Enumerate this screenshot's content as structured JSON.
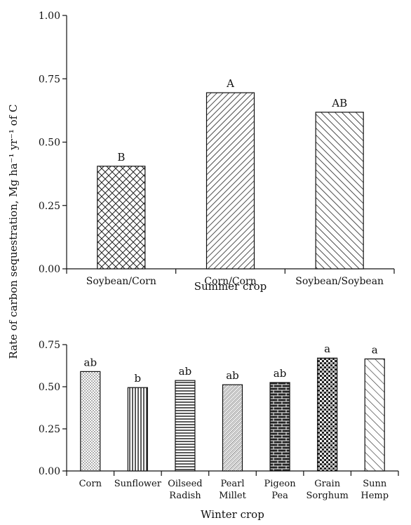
{
  "ylabel": "Rate of carbon sequestration, Mg ha⁻¹ yr⁻¹ of C",
  "chart_data": [
    {
      "type": "bar",
      "panel": "top",
      "xlabel": "Summer crop",
      "categories": [
        "Soybean/Corn",
        "Corn/Corn",
        "Soybean/Soybean"
      ],
      "values": [
        0.405,
        0.695,
        0.618
      ],
      "labels": [
        "B",
        "A",
        "AB"
      ],
      "patterns": [
        "crosshatch",
        "diagonal-dense",
        "diagonal"
      ],
      "ylim": [
        0,
        1.0
      ],
      "yticks": [
        "0.00",
        "0.25",
        "0.50",
        "0.75",
        "1.00"
      ],
      "grid": false
    },
    {
      "type": "bar",
      "panel": "bottom",
      "xlabel": "Winter crop",
      "categories": [
        [
          "Corn"
        ],
        [
          "Sunflower"
        ],
        [
          "Oilseed",
          "Radish"
        ],
        [
          "Pearl",
          "Millet"
        ],
        [
          "Pigeon",
          "Pea"
        ],
        [
          "Grain",
          "Sorghum"
        ],
        [
          "Sunn",
          "Hemp"
        ]
      ],
      "values": [
        0.59,
        0.495,
        0.537,
        0.512,
        0.525,
        0.67,
        0.665
      ],
      "labels": [
        "ab",
        "b",
        "ab",
        "ab",
        "ab",
        "a",
        "a"
      ],
      "patterns": [
        "dots",
        "vertical",
        "horizontal",
        "fine-diagonal",
        "brick",
        "checker",
        "diagonal-wide"
      ],
      "ylim": [
        0,
        0.75
      ],
      "yticks": [
        "0.00",
        "0.25",
        "0.50",
        "0.75"
      ],
      "grid": false
    }
  ]
}
